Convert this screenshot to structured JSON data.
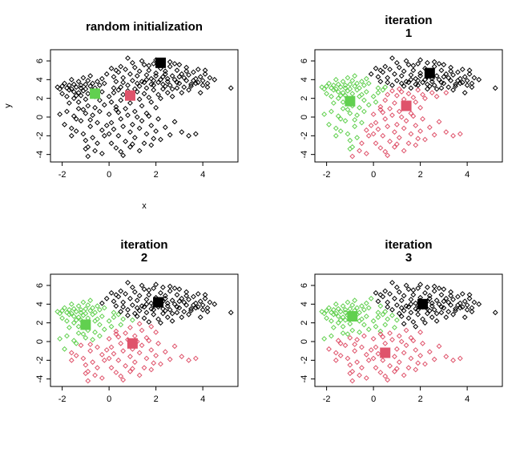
{
  "colors": {
    "cluster_1": "#000000",
    "cluster_2": "#DF536B",
    "cluster_3": "#61D04F"
  },
  "chart_data": [
    {
      "type": "scatter",
      "title": [
        "random initialization"
      ],
      "xlabel": "x",
      "ylabel": "y",
      "xlim": [
        -2.5,
        5.5
      ],
      "ylim": [
        -4.8,
        7.2
      ],
      "xticks": [
        "-2",
        "0",
        "2",
        "4"
      ],
      "yticks": [
        "-4",
        "-2",
        "0",
        "2",
        "4",
        "6"
      ],
      "point_coloring": "none",
      "centers": [
        {
          "cluster": 1,
          "x": 2.2,
          "y": 5.8
        },
        {
          "cluster": 2,
          "x": 0.9,
          "y": 2.3
        },
        {
          "cluster": 3,
          "x": -0.6,
          "y": 2.5
        }
      ]
    },
    {
      "type": "scatter",
      "title": [
        "iteration",
        "1"
      ],
      "xlabel": "",
      "ylabel": "",
      "xlim": [
        -2.5,
        5.5
      ],
      "ylim": [
        -4.8,
        7.2
      ],
      "xticks": [
        "-2",
        "0",
        "2",
        "4"
      ],
      "yticks": [
        "-4",
        "-2",
        "0",
        "2",
        "4",
        "6"
      ],
      "point_coloring": "nearest_center",
      "centers": [
        {
          "cluster": 1,
          "x": 2.4,
          "y": 4.7
        },
        {
          "cluster": 2,
          "x": 1.4,
          "y": 1.2
        },
        {
          "cluster": 3,
          "x": -1.0,
          "y": 1.7
        }
      ]
    },
    {
      "type": "scatter",
      "title": [
        "iteration",
        "2"
      ],
      "xlabel": "",
      "ylabel": "",
      "xlim": [
        -2.5,
        5.5
      ],
      "ylim": [
        -4.8,
        7.2
      ],
      "xticks": [
        "-2",
        "0",
        "2",
        "4"
      ],
      "yticks": [
        "-4",
        "-2",
        "0",
        "2",
        "4",
        "6"
      ],
      "point_coloring": "nearest_center",
      "centers": [
        {
          "cluster": 1,
          "x": 2.1,
          "y": 4.2
        },
        {
          "cluster": 2,
          "x": 1.0,
          "y": -0.2
        },
        {
          "cluster": 3,
          "x": -1.0,
          "y": 1.8
        }
      ]
    },
    {
      "type": "scatter",
      "title": [
        "iteration",
        "3"
      ],
      "xlabel": "",
      "ylabel": "",
      "xlim": [
        -2.5,
        5.5
      ],
      "ylim": [
        -4.8,
        7.2
      ],
      "xticks": [
        "-2",
        "0",
        "2",
        "4"
      ],
      "yticks": [
        "-4",
        "-2",
        "0",
        "2",
        "4",
        "6"
      ],
      "point_coloring": "nearest_center",
      "centers": [
        {
          "cluster": 1,
          "x": 2.1,
          "y": 4.0
        },
        {
          "cluster": 2,
          "x": 0.5,
          "y": -1.2
        },
        {
          "cluster": 3,
          "x": -0.9,
          "y": 2.7
        }
      ]
    }
  ],
  "points": [
    [
      -2.2,
      3.2
    ],
    [
      -2.1,
      3.0
    ],
    [
      -2.0,
      3.3
    ],
    [
      -1.9,
      3.6
    ],
    [
      -1.8,
      3.1
    ],
    [
      -1.7,
      2.9
    ],
    [
      -1.7,
      3.4
    ],
    [
      -1.6,
      3.0
    ],
    [
      -1.5,
      3.5
    ],
    [
      -1.5,
      2.7
    ],
    [
      -1.4,
      3.2
    ],
    [
      -1.3,
      3.8
    ],
    [
      -1.3,
      2.6
    ],
    [
      -1.2,
      3.1
    ],
    [
      -1.2,
      3.4
    ],
    [
      -1.1,
      2.8
    ],
    [
      -1.0,
      3.5
    ],
    [
      -1.0,
      3.0
    ],
    [
      -0.9,
      3.9
    ],
    [
      -0.9,
      2.5
    ],
    [
      -0.8,
      3.3
    ],
    [
      -0.7,
      3.6
    ],
    [
      -0.7,
      2.9
    ],
    [
      -0.6,
      3.1
    ],
    [
      -0.5,
      3.8
    ],
    [
      -0.5,
      2.4
    ],
    [
      -0.4,
      3.4
    ],
    [
      -0.3,
      2.7
    ],
    [
      -0.2,
      3.6
    ],
    [
      -1.6,
      4.0
    ],
    [
      -1.1,
      4.2
    ],
    [
      -0.8,
      4.4
    ],
    [
      -0.3,
      4.1
    ],
    [
      -1.4,
      2.3
    ],
    [
      -0.6,
      2.2
    ],
    [
      -2.0,
      2.5
    ],
    [
      -1.8,
      2.2
    ],
    [
      -1.5,
      2.0
    ],
    [
      -1.2,
      2.3
    ],
    [
      -1.0,
      1.9
    ],
    [
      -2.1,
      0.3
    ],
    [
      -1.9,
      -0.8
    ],
    [
      -1.8,
      0.6
    ],
    [
      -1.6,
      -1.2
    ],
    [
      -1.5,
      0.1
    ],
    [
      -1.4,
      -1.5
    ],
    [
      -1.3,
      0.9
    ],
    [
      -1.2,
      -0.4
    ],
    [
      -1.1,
      -1.8
    ],
    [
      -1.0,
      0.4
    ],
    [
      -1.0,
      -2.5
    ],
    [
      -0.9,
      -3.2
    ],
    [
      -1.0,
      -3.4
    ],
    [
      -0.8,
      -1.0
    ],
    [
      -0.7,
      0.2
    ],
    [
      -0.7,
      -2.2
    ],
    [
      -0.6,
      1.0
    ],
    [
      -0.5,
      -0.6
    ],
    [
      -0.5,
      -2.8
    ],
    [
      -0.4,
      0.6
    ],
    [
      -0.3,
      -1.4
    ],
    [
      -0.2,
      1.3
    ],
    [
      -0.2,
      -2.0
    ],
    [
      -1.3,
      1.6
    ],
    [
      -1.7,
      1.5
    ],
    [
      -0.9,
      1.2
    ],
    [
      -0.4,
      1.8
    ],
    [
      -1.1,
      0.8
    ],
    [
      -0.8,
      -0.3
    ],
    [
      -1.4,
      -0.2
    ],
    [
      -0.6,
      -3.6
    ],
    [
      -0.3,
      -3.9
    ],
    [
      -0.9,
      -4.2
    ],
    [
      -1.6,
      -2.0
    ],
    [
      0.0,
      2.2
    ],
    [
      0.1,
      1.6
    ],
    [
      0.2,
      2.6
    ],
    [
      0.3,
      1.1
    ],
    [
      0.4,
      2.9
    ],
    [
      0.5,
      1.8
    ],
    [
      0.6,
      2.4
    ],
    [
      0.7,
      0.9
    ],
    [
      0.8,
      2.8
    ],
    [
      0.9,
      1.5
    ],
    [
      1.0,
      2.3
    ],
    [
      1.1,
      0.6
    ],
    [
      1.2,
      2.7
    ],
    [
      1.3,
      1.9
    ],
    [
      1.4,
      1.2
    ],
    [
      1.5,
      2.5
    ],
    [
      1.6,
      0.4
    ],
    [
      1.7,
      2.1
    ],
    [
      1.8,
      1.6
    ],
    [
      1.9,
      2.9
    ],
    [
      2.0,
      1.0
    ],
    [
      2.1,
      2.4
    ],
    [
      2.2,
      2.0
    ],
    [
      2.3,
      3.0
    ],
    [
      2.5,
      2.6
    ],
    [
      2.7,
      2.2
    ],
    [
      2.9,
      3.1
    ],
    [
      3.1,
      2.6
    ],
    [
      3.4,
      2.9
    ],
    [
      3.9,
      2.6
    ],
    [
      4.2,
      3.2
    ],
    [
      0.2,
      3.1
    ],
    [
      0.5,
      3.2
    ],
    [
      0.8,
      3.4
    ],
    [
      1.1,
      3.0
    ],
    [
      1.3,
      3.3
    ],
    [
      1.6,
      3.1
    ],
    [
      1.9,
      3.4
    ],
    [
      2.4,
      3.3
    ],
    [
      0.3,
      3.8
    ],
    [
      0.0,
      0.3
    ],
    [
      0.1,
      -0.6
    ],
    [
      0.2,
      -1.3
    ],
    [
      0.3,
      0.8
    ],
    [
      0.4,
      -2.0
    ],
    [
      0.5,
      -0.2
    ],
    [
      0.6,
      -1.0
    ],
    [
      0.7,
      -2.6
    ],
    [
      0.8,
      0.2
    ],
    [
      0.9,
      -1.6
    ],
    [
      1.0,
      -0.8
    ],
    [
      1.1,
      -2.2
    ],
    [
      1.2,
      0.0
    ],
    [
      1.3,
      -1.2
    ],
    [
      1.4,
      -0.4
    ],
    [
      1.5,
      -2.8
    ],
    [
      1.6,
      -1.8
    ],
    [
      1.7,
      0.1
    ],
    [
      1.8,
      -0.9
    ],
    [
      1.9,
      -2.3
    ],
    [
      2.0,
      -1.5
    ],
    [
      2.1,
      -0.2
    ],
    [
      2.2,
      -2.4
    ],
    [
      2.4,
      -1.1
    ],
    [
      2.6,
      -1.9
    ],
    [
      2.8,
      -0.5
    ],
    [
      3.1,
      -1.6
    ],
    [
      3.4,
      -2.0
    ],
    [
      3.7,
      -1.8
    ],
    [
      0.0,
      -1.8
    ],
    [
      0.1,
      -2.8
    ],
    [
      0.3,
      -3.3
    ],
    [
      0.5,
      -3.7
    ],
    [
      0.6,
      -4.1
    ],
    [
      0.9,
      -3.2
    ],
    [
      1.3,
      -3.6
    ],
    [
      -0.1,
      -0.9
    ],
    [
      1.0,
      -2.9
    ],
    [
      1.8,
      -3.0
    ],
    [
      0.4,
      0.5
    ],
    [
      0.2,
      4.3
    ],
    [
      0.4,
      4.8
    ],
    [
      0.6,
      4.2
    ],
    [
      0.7,
      5.1
    ],
    [
      0.9,
      4.6
    ],
    [
      1.0,
      3.9
    ],
    [
      1.1,
      5.3
    ],
    [
      1.2,
      4.4
    ],
    [
      1.3,
      4.9
    ],
    [
      1.4,
      3.8
    ],
    [
      1.5,
      5.6
    ],
    [
      1.6,
      4.5
    ],
    [
      1.7,
      5.0
    ],
    [
      1.8,
      4.1
    ],
    [
      1.9,
      5.7
    ],
    [
      2.0,
      4.7
    ],
    [
      2.1,
      3.7
    ],
    [
      2.2,
      5.2
    ],
    [
      2.3,
      4.3
    ],
    [
      2.4,
      4.9
    ],
    [
      2.5,
      3.8
    ],
    [
      2.6,
      5.4
    ],
    [
      2.7,
      4.4
    ],
    [
      2.8,
      4.0
    ],
    [
      2.9,
      5.0
    ],
    [
      3.0,
      3.6
    ],
    [
      3.1,
      4.6
    ],
    [
      3.2,
      4.2
    ],
    [
      3.3,
      3.9
    ],
    [
      3.4,
      4.5
    ],
    [
      3.5,
      3.5
    ],
    [
      3.6,
      4.8
    ],
    [
      3.7,
      4.1
    ],
    [
      3.8,
      3.7
    ],
    [
      3.9,
      4.3
    ],
    [
      4.0,
      3.9
    ],
    [
      4.1,
      4.6
    ],
    [
      4.2,
      3.6
    ],
    [
      4.3,
      4.2
    ],
    [
      4.5,
      4.0
    ],
    [
      0.8,
      6.3
    ],
    [
      1.4,
      6.0
    ],
    [
      2.0,
      6.1
    ],
    [
      2.6,
      5.9
    ],
    [
      3.0,
      5.6
    ],
    [
      3.3,
      5.3
    ],
    [
      3.8,
      5.1
    ],
    [
      4.1,
      5.0
    ],
    [
      1.0,
      5.8
    ],
    [
      1.7,
      5.5
    ],
    [
      2.3,
      5.8
    ],
    [
      2.8,
      5.7
    ],
    [
      1.2,
      3.6
    ],
    [
      1.8,
      3.5
    ],
    [
      2.2,
      4.0
    ],
    [
      2.5,
      4.1
    ],
    [
      2.0,
      4.4
    ],
    [
      2.3,
      3.5
    ],
    [
      2.6,
      3.4
    ],
    [
      2.9,
      3.7
    ],
    [
      3.2,
      3.2
    ],
    [
      3.5,
      3.3
    ],
    [
      3.7,
      3.6
    ],
    [
      4.0,
      3.4
    ],
    [
      0.5,
      5.4
    ],
    [
      0.3,
      5.0
    ],
    [
      -0.1,
      4.6
    ],
    [
      0.1,
      5.2
    ],
    [
      0.6,
      3.7
    ],
    [
      1.5,
      3.7
    ],
    [
      1.9,
      3.9
    ],
    [
      2.7,
      3.0
    ],
    [
      3.3,
      4.9
    ],
    [
      3.6,
      3.9
    ],
    [
      3.0,
      4.3
    ],
    [
      2.4,
      4.6
    ],
    [
      1.6,
      4.0
    ],
    [
      5.2,
      3.1
    ]
  ]
}
